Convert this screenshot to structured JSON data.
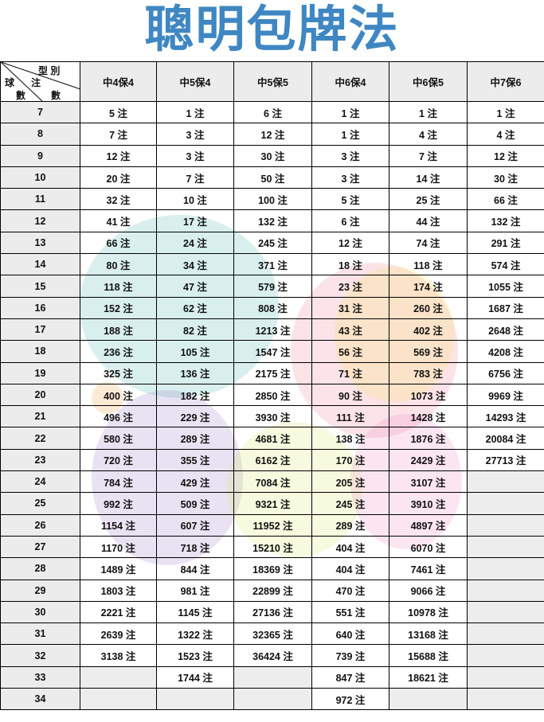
{
  "title": "聰明包牌法",
  "corner": {
    "type": "型 別",
    "ball": "球",
    "bets": "注",
    "count_left": "數",
    "count_right": "數"
  },
  "columns": [
    "中4保4",
    "中5保4",
    "中5保5",
    "中6保4",
    "中6保5",
    "中7保6"
  ],
  "rows": [
    {
      "n": "7",
      "v": [
        "5 注",
        "1 注",
        "6 注",
        "1 注",
        "1 注",
        "1 注"
      ]
    },
    {
      "n": "8",
      "v": [
        "7 注",
        "3 注",
        "12 注",
        "1 注",
        "4 注",
        "4 注"
      ]
    },
    {
      "n": "9",
      "v": [
        "12 注",
        "3 注",
        "30 注",
        "3 注",
        "7 注",
        "12 注"
      ]
    },
    {
      "n": "10",
      "v": [
        "20 注",
        "7 注",
        "50 注",
        "3 注",
        "14 注",
        "30 注"
      ]
    },
    {
      "n": "11",
      "v": [
        "32 注",
        "10 注",
        "100 注",
        "5 注",
        "25 注",
        "66 注"
      ]
    },
    {
      "n": "12",
      "v": [
        "41 注",
        "17 注",
        "132 注",
        "6 注",
        "44 注",
        "132 注"
      ]
    },
    {
      "n": "13",
      "v": [
        "66 注",
        "24 注",
        "245 注",
        "12 注",
        "74 注",
        "291 注"
      ]
    },
    {
      "n": "14",
      "v": [
        "80 注",
        "34 注",
        "371 注",
        "18 注",
        "118 注",
        "574 注"
      ]
    },
    {
      "n": "15",
      "v": [
        "118 注",
        "47 注",
        "579 注",
        "23 注",
        "174 注",
        "1055 注"
      ]
    },
    {
      "n": "16",
      "v": [
        "152 注",
        "62 注",
        "808 注",
        "31 注",
        "260 注",
        "1687 注"
      ]
    },
    {
      "n": "17",
      "v": [
        "188 注",
        "82 注",
        "1213 注",
        "43 注",
        "402 注",
        "2648 注"
      ]
    },
    {
      "n": "18",
      "v": [
        "236 注",
        "105 注",
        "1547 注",
        "56 注",
        "569 注",
        "4208 注"
      ]
    },
    {
      "n": "19",
      "v": [
        "325 注",
        "136 注",
        "2175 注",
        "71 注",
        "783 注",
        "6756 注"
      ]
    },
    {
      "n": "20",
      "v": [
        "400 注",
        "182 注",
        "2850 注",
        "90 注",
        "1073 注",
        "9969 注"
      ]
    },
    {
      "n": "21",
      "v": [
        "496 注",
        "229 注",
        "3930 注",
        "111 注",
        "1428 注",
        "14293 注"
      ]
    },
    {
      "n": "22",
      "v": [
        "580 注",
        "289 注",
        "4681 注",
        "138 注",
        "1876 注",
        "20084 注"
      ]
    },
    {
      "n": "23",
      "v": [
        "720 注",
        "355 注",
        "6162 注",
        "170 注",
        "2429 注",
        "27713 注"
      ]
    },
    {
      "n": "24",
      "v": [
        "784 注",
        "429 注",
        "7084 注",
        "205 注",
        "3107 注",
        ""
      ]
    },
    {
      "n": "25",
      "v": [
        "992 注",
        "509 注",
        "9321 注",
        "245 注",
        "3910 注",
        ""
      ]
    },
    {
      "n": "26",
      "v": [
        "1154 注",
        "607 注",
        "11952 注",
        "289 注",
        "4897 注",
        ""
      ]
    },
    {
      "n": "27",
      "v": [
        "1170 注",
        "718 注",
        "15210 注",
        "404 注",
        "6070 注",
        ""
      ]
    },
    {
      "n": "28",
      "v": [
        "1489 注",
        "844 注",
        "18369 注",
        "404 注",
        "7461 注",
        ""
      ]
    },
    {
      "n": "29",
      "v": [
        "1803 注",
        "981 注",
        "22899 注",
        "470 注",
        "9066 注",
        ""
      ]
    },
    {
      "n": "30",
      "v": [
        "2221 注",
        "1145 注",
        "27136 注",
        "551 注",
        "10978 注",
        ""
      ]
    },
    {
      "n": "31",
      "v": [
        "2639 注",
        "1322 注",
        "32365 注",
        "640 注",
        "13168 注",
        ""
      ]
    },
    {
      "n": "32",
      "v": [
        "3138 注",
        "1523 注",
        "36424 注",
        "739 注",
        "15688 注",
        ""
      ]
    },
    {
      "n": "33",
      "v": [
        "",
        "1744 注",
        "",
        "847 注",
        "18621 注",
        ""
      ]
    },
    {
      "n": "34",
      "v": [
        "",
        "",
        "",
        "972 注",
        "",
        ""
      ]
    }
  ],
  "colors": {
    "title": "#3f87c2",
    "header_bg": "#ececec",
    "border": "#000000"
  }
}
